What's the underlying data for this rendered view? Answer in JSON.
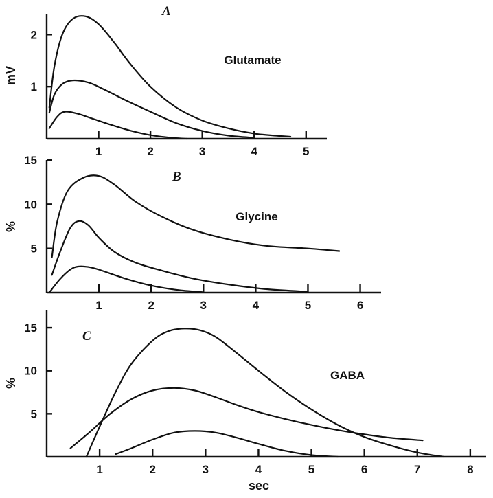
{
  "figure": {
    "xlabel": "sec"
  },
  "chart_data": [
    {
      "type": "line",
      "panel": "A",
      "annotation": "Glutamate",
      "ylabel": "mV",
      "xlim": [
        0,
        5.4
      ],
      "ylim": [
        0,
        2.4
      ],
      "xticks": [
        1,
        2,
        3,
        4,
        5
      ],
      "yticks": [
        1,
        2
      ],
      "series": [
        {
          "x": [
            0.05,
            0.15,
            0.3,
            0.5,
            0.75,
            1.0,
            1.3,
            1.6,
            2.0,
            2.5,
            3.0,
            3.5,
            4.0,
            4.4,
            4.7
          ],
          "y": [
            0.6,
            1.4,
            2.0,
            2.3,
            2.35,
            2.2,
            1.85,
            1.45,
            1.0,
            0.6,
            0.35,
            0.2,
            0.1,
            0.06,
            0.04
          ]
        },
        {
          "x": [
            0.05,
            0.15,
            0.3,
            0.5,
            0.8,
            1.1,
            1.5,
            2.0,
            2.5,
            3.0,
            3.5,
            4.0
          ],
          "y": [
            0.5,
            0.85,
            1.05,
            1.12,
            1.08,
            0.95,
            0.75,
            0.52,
            0.3,
            0.15,
            0.06,
            0.02
          ]
        },
        {
          "x": [
            0.05,
            0.2,
            0.35,
            0.6,
            0.9,
            1.2,
            1.6,
            2.0,
            2.4,
            2.7
          ],
          "y": [
            0.2,
            0.42,
            0.52,
            0.48,
            0.38,
            0.28,
            0.16,
            0.07,
            0.02,
            0.0
          ]
        }
      ]
    },
    {
      "type": "line",
      "panel": "B",
      "annotation": "Glycine",
      "ylabel": "%",
      "xlim": [
        0,
        6.4
      ],
      "ylim": [
        0,
        15
      ],
      "xticks": [
        1,
        2,
        3,
        4,
        5,
        6
      ],
      "yticks": [
        5,
        10,
        15
      ],
      "series": [
        {
          "x": [
            0.1,
            0.2,
            0.4,
            0.7,
            1.0,
            1.3,
            1.7,
            2.2,
            2.8,
            3.5,
            4.2,
            5.0,
            5.6
          ],
          "y": [
            4.0,
            8.0,
            11.5,
            13.0,
            13.2,
            12.2,
            10.3,
            8.6,
            7.1,
            6.0,
            5.3,
            5.0,
            4.7
          ]
        },
        {
          "x": [
            0.1,
            0.25,
            0.45,
            0.62,
            0.8,
            1.0,
            1.3,
            1.7,
            2.2,
            2.8,
            3.5,
            4.2,
            5.0
          ],
          "y": [
            2.0,
            4.5,
            7.3,
            8.1,
            7.6,
            6.2,
            4.6,
            3.4,
            2.5,
            1.6,
            0.9,
            0.4,
            0.1
          ]
        },
        {
          "x": [
            0.05,
            0.25,
            0.45,
            0.6,
            0.8,
            1.0,
            1.5,
            2.0,
            2.5,
            3.0
          ],
          "y": [
            0.0,
            1.5,
            2.6,
            2.95,
            2.9,
            2.6,
            1.6,
            0.8,
            0.3,
            0.05
          ]
        }
      ]
    },
    {
      "type": "line",
      "panel": "C",
      "annotation": "GABA",
      "ylabel": "%",
      "xlabel": "sec",
      "xlim": [
        0,
        8.3
      ],
      "ylim": [
        0,
        17
      ],
      "xticks": [
        1,
        2,
        3,
        4,
        5,
        6,
        7,
        8
      ],
      "yticks": [
        5,
        10,
        15
      ],
      "series": [
        {
          "x": [
            0.75,
            1.0,
            1.3,
            1.6,
            2.0,
            2.3,
            2.6,
            2.9,
            3.2,
            3.6,
            4.0,
            4.5,
            5.0,
            5.5,
            6.0,
            6.5,
            7.0,
            7.5
          ],
          "y": [
            0.0,
            3.5,
            7.5,
            10.8,
            13.5,
            14.6,
            14.9,
            14.7,
            13.9,
            12.0,
            10.0,
            7.6,
            5.5,
            3.7,
            2.3,
            1.3,
            0.5,
            0.0
          ]
        },
        {
          "x": [
            0.45,
            0.8,
            1.2,
            1.6,
            2.0,
            2.4,
            2.8,
            3.2,
            3.6,
            4.0,
            4.5,
            5.0,
            5.5,
            6.0,
            6.5,
            7.1
          ],
          "y": [
            1.0,
            2.8,
            5.0,
            6.7,
            7.7,
            8.0,
            7.7,
            6.9,
            6.0,
            5.2,
            4.4,
            3.7,
            3.1,
            2.6,
            2.2,
            1.9
          ]
        },
        {
          "x": [
            1.3,
            1.6,
            2.0,
            2.4,
            2.8,
            3.2,
            3.6,
            4.0,
            4.5,
            5.0,
            5.5
          ],
          "y": [
            0.3,
            1.0,
            2.0,
            2.8,
            3.0,
            2.8,
            2.2,
            1.5,
            0.7,
            0.2,
            0.0
          ]
        }
      ]
    }
  ]
}
